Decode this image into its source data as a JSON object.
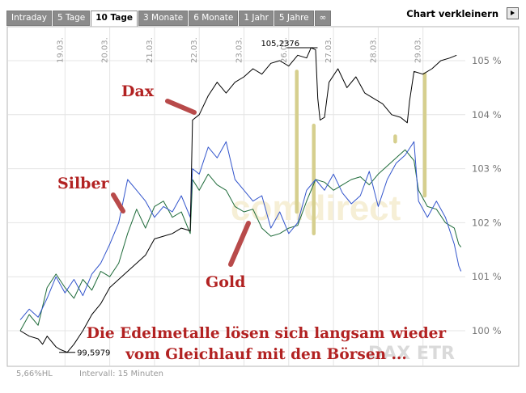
{
  "tabs": [
    "Intraday",
    "5 Tage",
    "10 Tage",
    "3 Monate",
    "6 Monate",
    "1 Jahr",
    "5 Jahre",
    "∞"
  ],
  "active_tab": 2,
  "verkleinern_label": "Chart verkleinern",
  "footer": {
    "hl": "5,66%HL",
    "interval": "Intervall: 15 Minuten"
  },
  "watermark": "comdirect",
  "colors": {
    "dax": "#000000",
    "silber": "#3355cc",
    "gold": "#1f6b3a",
    "annotation": "#b84a4a",
    "marker": "#d6cf8e",
    "title": "#b22222"
  },
  "chart_data": {
    "type": "line",
    "title": "",
    "annotation_text": [
      "Die Edelmetalle lösen sich langsam wieder",
      "vom Gleichlauf mit den Börsen ..."
    ],
    "legend_note": "DAX ETR",
    "x_axis": {
      "ticks": [
        "19.03.",
        "20.03.",
        "21.03.",
        "22.03.",
        "23.03.",
        "26.03.",
        "27.03.",
        "28.03.",
        "29.03."
      ]
    },
    "y_axis": {
      "ticks": [
        100,
        101,
        102,
        103,
        104,
        105
      ],
      "tick_labels": [
        "100 %",
        "101 %",
        "102 %",
        "103 %",
        "104 %",
        "105 %"
      ],
      "ylim": [
        99.8,
        105.2
      ],
      "position": "right",
      "grid": true
    },
    "extremes": [
      {
        "label": "105,2376",
        "series": "Dax",
        "x": 5.7,
        "y": 105.24
      },
      {
        "label": "99,5979",
        "series": "Dax",
        "x": 0.25,
        "y": 99.6
      }
    ],
    "series_labels": [
      "Dax",
      "Silber",
      "Gold"
    ],
    "series": [
      {
        "name": "Dax",
        "color": "#000000",
        "points": [
          [
            -0.8,
            100.0
          ],
          [
            -0.6,
            99.9
          ],
          [
            -0.4,
            99.85
          ],
          [
            -0.3,
            99.75
          ],
          [
            -0.2,
            99.9
          ],
          [
            0.0,
            99.7
          ],
          [
            0.1,
            99.65
          ],
          [
            0.25,
            99.6
          ],
          [
            0.4,
            99.75
          ],
          [
            0.6,
            100.0
          ],
          [
            0.8,
            100.3
          ],
          [
            1.0,
            100.5
          ],
          [
            1.2,
            100.8
          ],
          [
            1.4,
            100.95
          ],
          [
            1.6,
            101.1
          ],
          [
            1.8,
            101.25
          ],
          [
            2.0,
            101.4
          ],
          [
            2.2,
            101.7
          ],
          [
            2.4,
            101.75
          ],
          [
            2.6,
            101.8
          ],
          [
            2.8,
            101.9
          ],
          [
            3.0,
            101.85
          ],
          [
            3.05,
            103.9
          ],
          [
            3.2,
            104.0
          ],
          [
            3.4,
            104.35
          ],
          [
            3.6,
            104.6
          ],
          [
            3.8,
            104.4
          ],
          [
            4.0,
            104.6
          ],
          [
            4.2,
            104.7
          ],
          [
            4.4,
            104.85
          ],
          [
            4.6,
            104.75
          ],
          [
            4.8,
            104.95
          ],
          [
            5.0,
            105.0
          ],
          [
            5.2,
            104.9
          ],
          [
            5.4,
            105.1
          ],
          [
            5.6,
            105.05
          ],
          [
            5.7,
            105.24
          ],
          [
            5.8,
            105.2
          ],
          [
            5.85,
            104.3
          ],
          [
            5.9,
            103.9
          ],
          [
            6.0,
            103.95
          ],
          [
            6.1,
            104.6
          ],
          [
            6.3,
            104.85
          ],
          [
            6.5,
            104.5
          ],
          [
            6.7,
            104.7
          ],
          [
            6.9,
            104.4
          ],
          [
            7.1,
            104.3
          ],
          [
            7.3,
            104.2
          ],
          [
            7.5,
            104.0
          ],
          [
            7.7,
            103.95
          ],
          [
            7.85,
            103.85
          ],
          [
            7.9,
            104.25
          ],
          [
            8.0,
            104.8
          ],
          [
            8.2,
            104.75
          ],
          [
            8.4,
            104.85
          ],
          [
            8.6,
            105.0
          ],
          [
            8.8,
            105.05
          ],
          [
            8.95,
            105.1
          ]
        ]
      },
      {
        "name": "Silber",
        "color": "#3355cc",
        "points": [
          [
            -0.8,
            100.2
          ],
          [
            -0.6,
            100.4
          ],
          [
            -0.4,
            100.25
          ],
          [
            -0.2,
            100.6
          ],
          [
            0.0,
            101.0
          ],
          [
            0.2,
            100.7
          ],
          [
            0.4,
            100.95
          ],
          [
            0.6,
            100.65
          ],
          [
            0.8,
            101.05
          ],
          [
            1.0,
            101.25
          ],
          [
            1.2,
            101.6
          ],
          [
            1.4,
            102.0
          ],
          [
            1.6,
            102.8
          ],
          [
            1.8,
            102.6
          ],
          [
            2.0,
            102.4
          ],
          [
            2.2,
            102.1
          ],
          [
            2.4,
            102.3
          ],
          [
            2.6,
            102.2
          ],
          [
            2.8,
            102.5
          ],
          [
            3.0,
            102.1
          ],
          [
            3.05,
            103.0
          ],
          [
            3.2,
            102.9
          ],
          [
            3.4,
            103.4
          ],
          [
            3.6,
            103.2
          ],
          [
            3.8,
            103.5
          ],
          [
            4.0,
            102.8
          ],
          [
            4.2,
            102.6
          ],
          [
            4.4,
            102.4
          ],
          [
            4.6,
            102.5
          ],
          [
            4.8,
            101.9
          ],
          [
            5.0,
            102.2
          ],
          [
            5.2,
            101.8
          ],
          [
            5.4,
            102.0
          ],
          [
            5.6,
            102.6
          ],
          [
            5.8,
            102.8
          ],
          [
            6.0,
            102.6
          ],
          [
            6.2,
            102.9
          ],
          [
            6.4,
            102.55
          ],
          [
            6.6,
            102.35
          ],
          [
            6.8,
            102.5
          ],
          [
            7.0,
            102.95
          ],
          [
            7.2,
            102.3
          ],
          [
            7.4,
            102.8
          ],
          [
            7.6,
            103.1
          ],
          [
            7.8,
            103.25
          ],
          [
            8.0,
            103.5
          ],
          [
            8.1,
            102.4
          ],
          [
            8.3,
            102.1
          ],
          [
            8.5,
            102.4
          ],
          [
            8.7,
            102.1
          ],
          [
            8.9,
            101.6
          ],
          [
            9.0,
            101.2
          ],
          [
            9.05,
            101.1
          ]
        ]
      },
      {
        "name": "Gold",
        "color": "#1f6b3a",
        "points": [
          [
            -0.8,
            100.0
          ],
          [
            -0.6,
            100.3
          ],
          [
            -0.4,
            100.1
          ],
          [
            -0.2,
            100.8
          ],
          [
            0.0,
            101.05
          ],
          [
            0.2,
            100.8
          ],
          [
            0.4,
            100.6
          ],
          [
            0.6,
            100.95
          ],
          [
            0.8,
            100.75
          ],
          [
            1.0,
            101.1
          ],
          [
            1.2,
            101.0
          ],
          [
            1.4,
            101.25
          ],
          [
            1.6,
            101.8
          ],
          [
            1.8,
            102.25
          ],
          [
            2.0,
            101.9
          ],
          [
            2.2,
            102.3
          ],
          [
            2.4,
            102.4
          ],
          [
            2.6,
            102.1
          ],
          [
            2.8,
            102.2
          ],
          [
            3.0,
            101.8
          ],
          [
            3.05,
            102.8
          ],
          [
            3.2,
            102.6
          ],
          [
            3.4,
            102.9
          ],
          [
            3.6,
            102.7
          ],
          [
            3.8,
            102.6
          ],
          [
            4.0,
            102.3
          ],
          [
            4.2,
            102.2
          ],
          [
            4.4,
            102.25
          ],
          [
            4.6,
            101.9
          ],
          [
            4.8,
            101.75
          ],
          [
            5.0,
            101.8
          ],
          [
            5.2,
            101.9
          ],
          [
            5.4,
            101.95
          ],
          [
            5.6,
            102.4
          ],
          [
            5.8,
            102.8
          ],
          [
            6.0,
            102.75
          ],
          [
            6.2,
            102.6
          ],
          [
            6.4,
            102.7
          ],
          [
            6.6,
            102.8
          ],
          [
            6.8,
            102.85
          ],
          [
            7.0,
            102.7
          ],
          [
            7.2,
            102.9
          ],
          [
            7.4,
            103.05
          ],
          [
            7.6,
            103.2
          ],
          [
            7.8,
            103.35
          ],
          [
            8.0,
            103.15
          ],
          [
            8.1,
            102.6
          ],
          [
            8.3,
            102.3
          ],
          [
            8.5,
            102.25
          ],
          [
            8.7,
            102.0
          ],
          [
            8.9,
            101.9
          ],
          [
            9.0,
            101.6
          ],
          [
            9.05,
            101.55
          ]
        ]
      }
    ]
  }
}
